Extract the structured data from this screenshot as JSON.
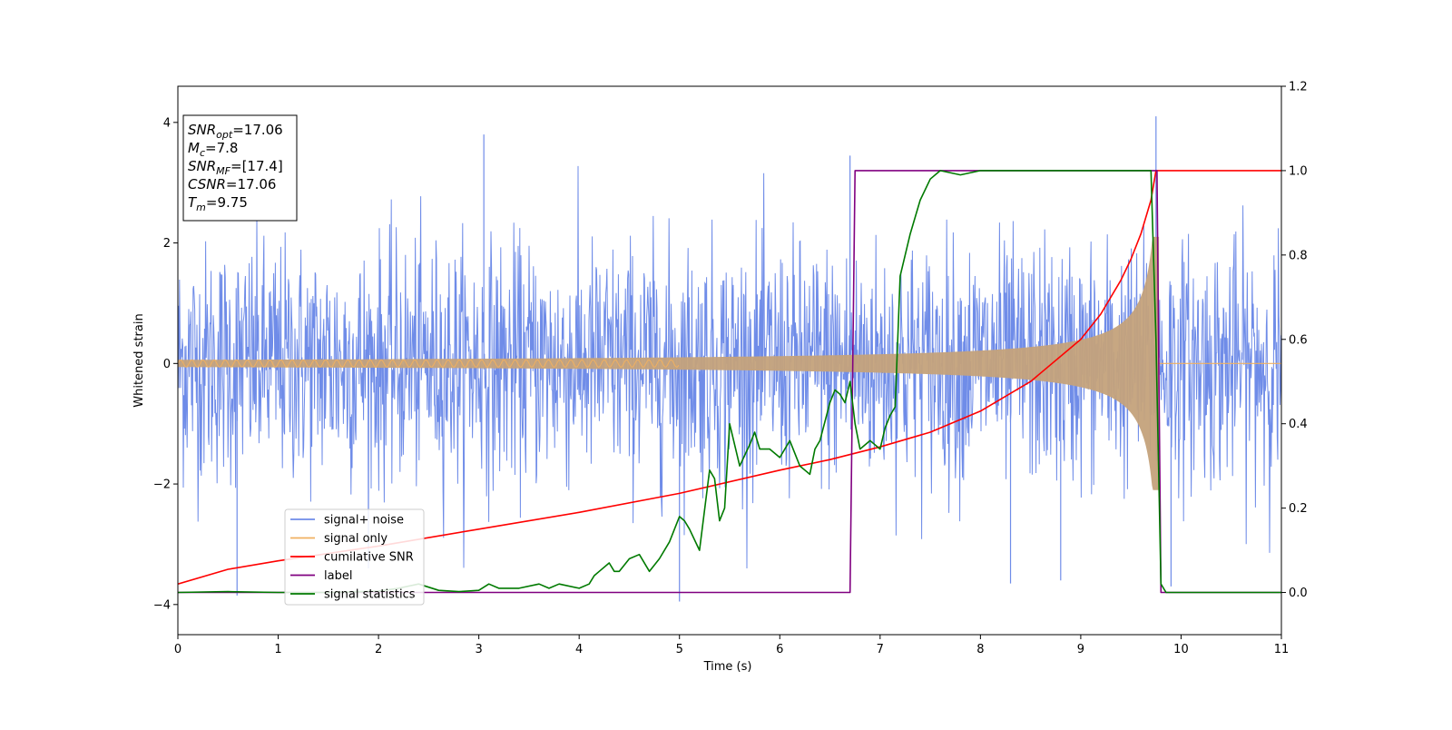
{
  "chart_data": {
    "type": "line",
    "xlabel": "Time (s)",
    "ylabel": "Whitened strain",
    "xlim": [
      0,
      11
    ],
    "ylim": [
      -4.5,
      4.6
    ],
    "y2lim": [
      -0.1,
      1.2
    ],
    "x_ticks": [
      "0",
      "1",
      "2",
      "3",
      "4",
      "5",
      "6",
      "7",
      "8",
      "9",
      "10",
      "11"
    ],
    "y_ticks": [
      "4",
      "2",
      "0",
      "−2",
      "−4"
    ],
    "y_tick_values": [
      4,
      2,
      0,
      -2,
      -4
    ],
    "y2_ticks": [
      "1.2",
      "1.0",
      "0.8",
      "0.6",
      "0.4",
      "0.2",
      "0.0"
    ],
    "y2_tick_values": [
      1.2,
      1.0,
      0.8,
      0.6,
      0.4,
      0.2,
      0.0
    ],
    "grid": false,
    "legend_placement": "lower-left",
    "info_box": {
      "lines": [
        {
          "base": "SNR",
          "sub": "opt",
          "rest": "=17.06"
        },
        {
          "base": "M",
          "sub": "c",
          "rest": "=7.8"
        },
        {
          "base": "SNR",
          "sub": "MF",
          "rest": "=[17.4]"
        },
        {
          "base": "CSNR",
          "sub": "",
          "rest": "=17.06"
        },
        {
          "base": "T",
          "sub": "m",
          "rest": "=9.75"
        }
      ]
    },
    "series": [
      {
        "name": "signal+ noise",
        "color": "#6f8ce8",
        "axis": "left",
        "description_values": {
          "noise_std": 1.0,
          "range": [
            -4.0,
            4.1
          ]
        },
        "spike_points": [
          [
            0.59,
            -3.85
          ],
          [
            3.05,
            3.8
          ],
          [
            5.0,
            -3.95
          ],
          [
            6.7,
            3.45
          ],
          [
            9.75,
            4.1
          ],
          [
            9.9,
            -3.7
          ],
          [
            8.3,
            -3.65
          ],
          [
            8.8,
            -3.6
          ]
        ]
      },
      {
        "name": "signal only",
        "color": "#f0b060",
        "axis": "left",
        "description_values": {
          "envelope_start": 0.06,
          "envelope_at_9": 0.35,
          "envelope_peak": 2.1,
          "peak_time": 9.75,
          "end_time": 9.78
        }
      },
      {
        "name": "cumilative SNR",
        "color": "#ff0000",
        "axis": "right",
        "x": [
          0,
          0.5,
          1,
          2,
          3,
          4,
          5,
          6,
          6.5,
          7,
          7.5,
          8,
          8.5,
          9,
          9.2,
          9.4,
          9.5,
          9.6,
          9.7,
          9.75,
          11
        ],
        "y": [
          0.02,
          0.055,
          0.075,
          0.11,
          0.15,
          0.19,
          0.235,
          0.29,
          0.315,
          0.345,
          0.38,
          0.43,
          0.5,
          0.6,
          0.66,
          0.74,
          0.79,
          0.85,
          0.93,
          1.0,
          1.0
        ]
      },
      {
        "name": "label",
        "color": "#800080",
        "axis": "right",
        "x": [
          0,
          6.7,
          6.75,
          9.76,
          9.8,
          11
        ],
        "y": [
          0,
          0,
          1.0,
          1.0,
          0,
          0
        ]
      },
      {
        "name": "signal statistics",
        "color": "#007a00",
        "axis": "right",
        "x": [
          0,
          0.5,
          1,
          1.5,
          2,
          2.2,
          2.4,
          2.6,
          2.8,
          3.0,
          3.1,
          3.2,
          3.4,
          3.6,
          3.7,
          3.8,
          4.0,
          4.1,
          4.15,
          4.2,
          4.3,
          4.35,
          4.4,
          4.5,
          4.6,
          4.7,
          4.8,
          4.9,
          5.0,
          5.05,
          5.1,
          5.2,
          5.3,
          5.35,
          5.4,
          5.45,
          5.5,
          5.6,
          5.7,
          5.75,
          5.8,
          5.9,
          6.0,
          6.1,
          6.2,
          6.3,
          6.35,
          6.4,
          6.5,
          6.55,
          6.6,
          6.65,
          6.7,
          6.75,
          6.8,
          6.9,
          7.0,
          7.05,
          7.1,
          7.15,
          7.2,
          7.3,
          7.4,
          7.5,
          7.6,
          7.8,
          8.0,
          8.5,
          9.0,
          9.5,
          9.7,
          9.75,
          9.8,
          9.85,
          11
        ],
        "y": [
          0.0,
          0.002,
          0.0,
          0.0,
          0.003,
          0.01,
          0.02,
          0.005,
          0.002,
          0.005,
          0.02,
          0.01,
          0.01,
          0.02,
          0.01,
          0.02,
          0.01,
          0.02,
          0.04,
          0.05,
          0.07,
          0.05,
          0.05,
          0.08,
          0.09,
          0.05,
          0.08,
          0.12,
          0.18,
          0.17,
          0.15,
          0.1,
          0.29,
          0.27,
          0.17,
          0.2,
          0.4,
          0.3,
          0.35,
          0.38,
          0.34,
          0.34,
          0.32,
          0.36,
          0.3,
          0.28,
          0.34,
          0.36,
          0.45,
          0.48,
          0.47,
          0.45,
          0.5,
          0.4,
          0.34,
          0.36,
          0.34,
          0.39,
          0.42,
          0.44,
          0.75,
          0.85,
          0.93,
          0.98,
          1.0,
          0.99,
          1.0,
          1.0,
          1.0,
          1.0,
          1.0,
          0.6,
          0.02,
          0.0,
          0.0
        ]
      }
    ]
  }
}
